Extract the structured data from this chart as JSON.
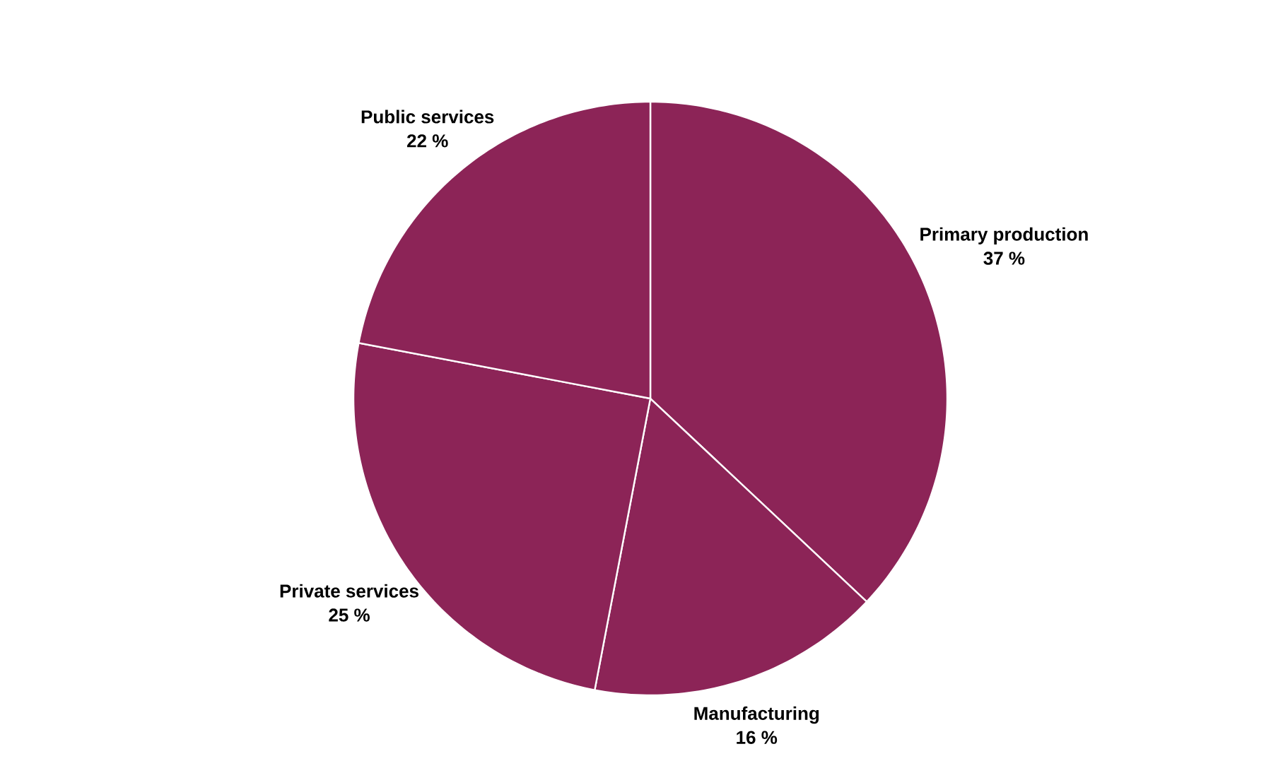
{
  "chart_data": {
    "type": "pie",
    "categories": [
      "Primary production",
      "Manufacturing",
      "Private services",
      "Public services"
    ],
    "values": [
      37,
      16,
      25,
      22
    ],
    "value_labels": [
      "37 %",
      "16 %",
      "25 %",
      "22 %"
    ],
    "colors": [
      "#8c2457",
      "#8c2457",
      "#8c2457",
      "#8c2457"
    ]
  }
}
